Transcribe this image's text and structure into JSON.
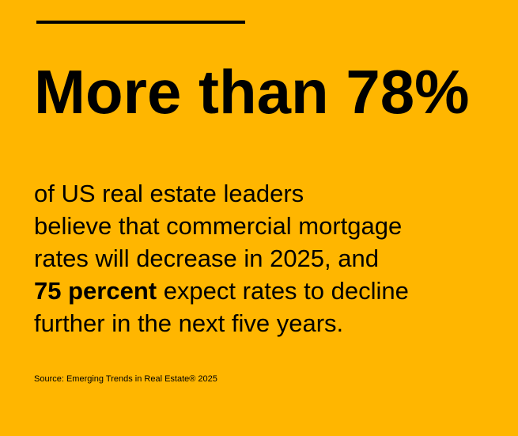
{
  "card": {
    "background_color": "#FFB600",
    "text_color": "#000000",
    "headline": "More than 78%",
    "body_lines": [
      "of US real estate leaders",
      "believe that commercial mortgage",
      "rates will decrease in 2025, and"
    ],
    "body_emphasis": "75 percent",
    "body_line4_rest": " expect rates to decline",
    "body_line5": "further in the next five years.",
    "source": "Source: Emerging Trends in Real Estate® 2025"
  }
}
